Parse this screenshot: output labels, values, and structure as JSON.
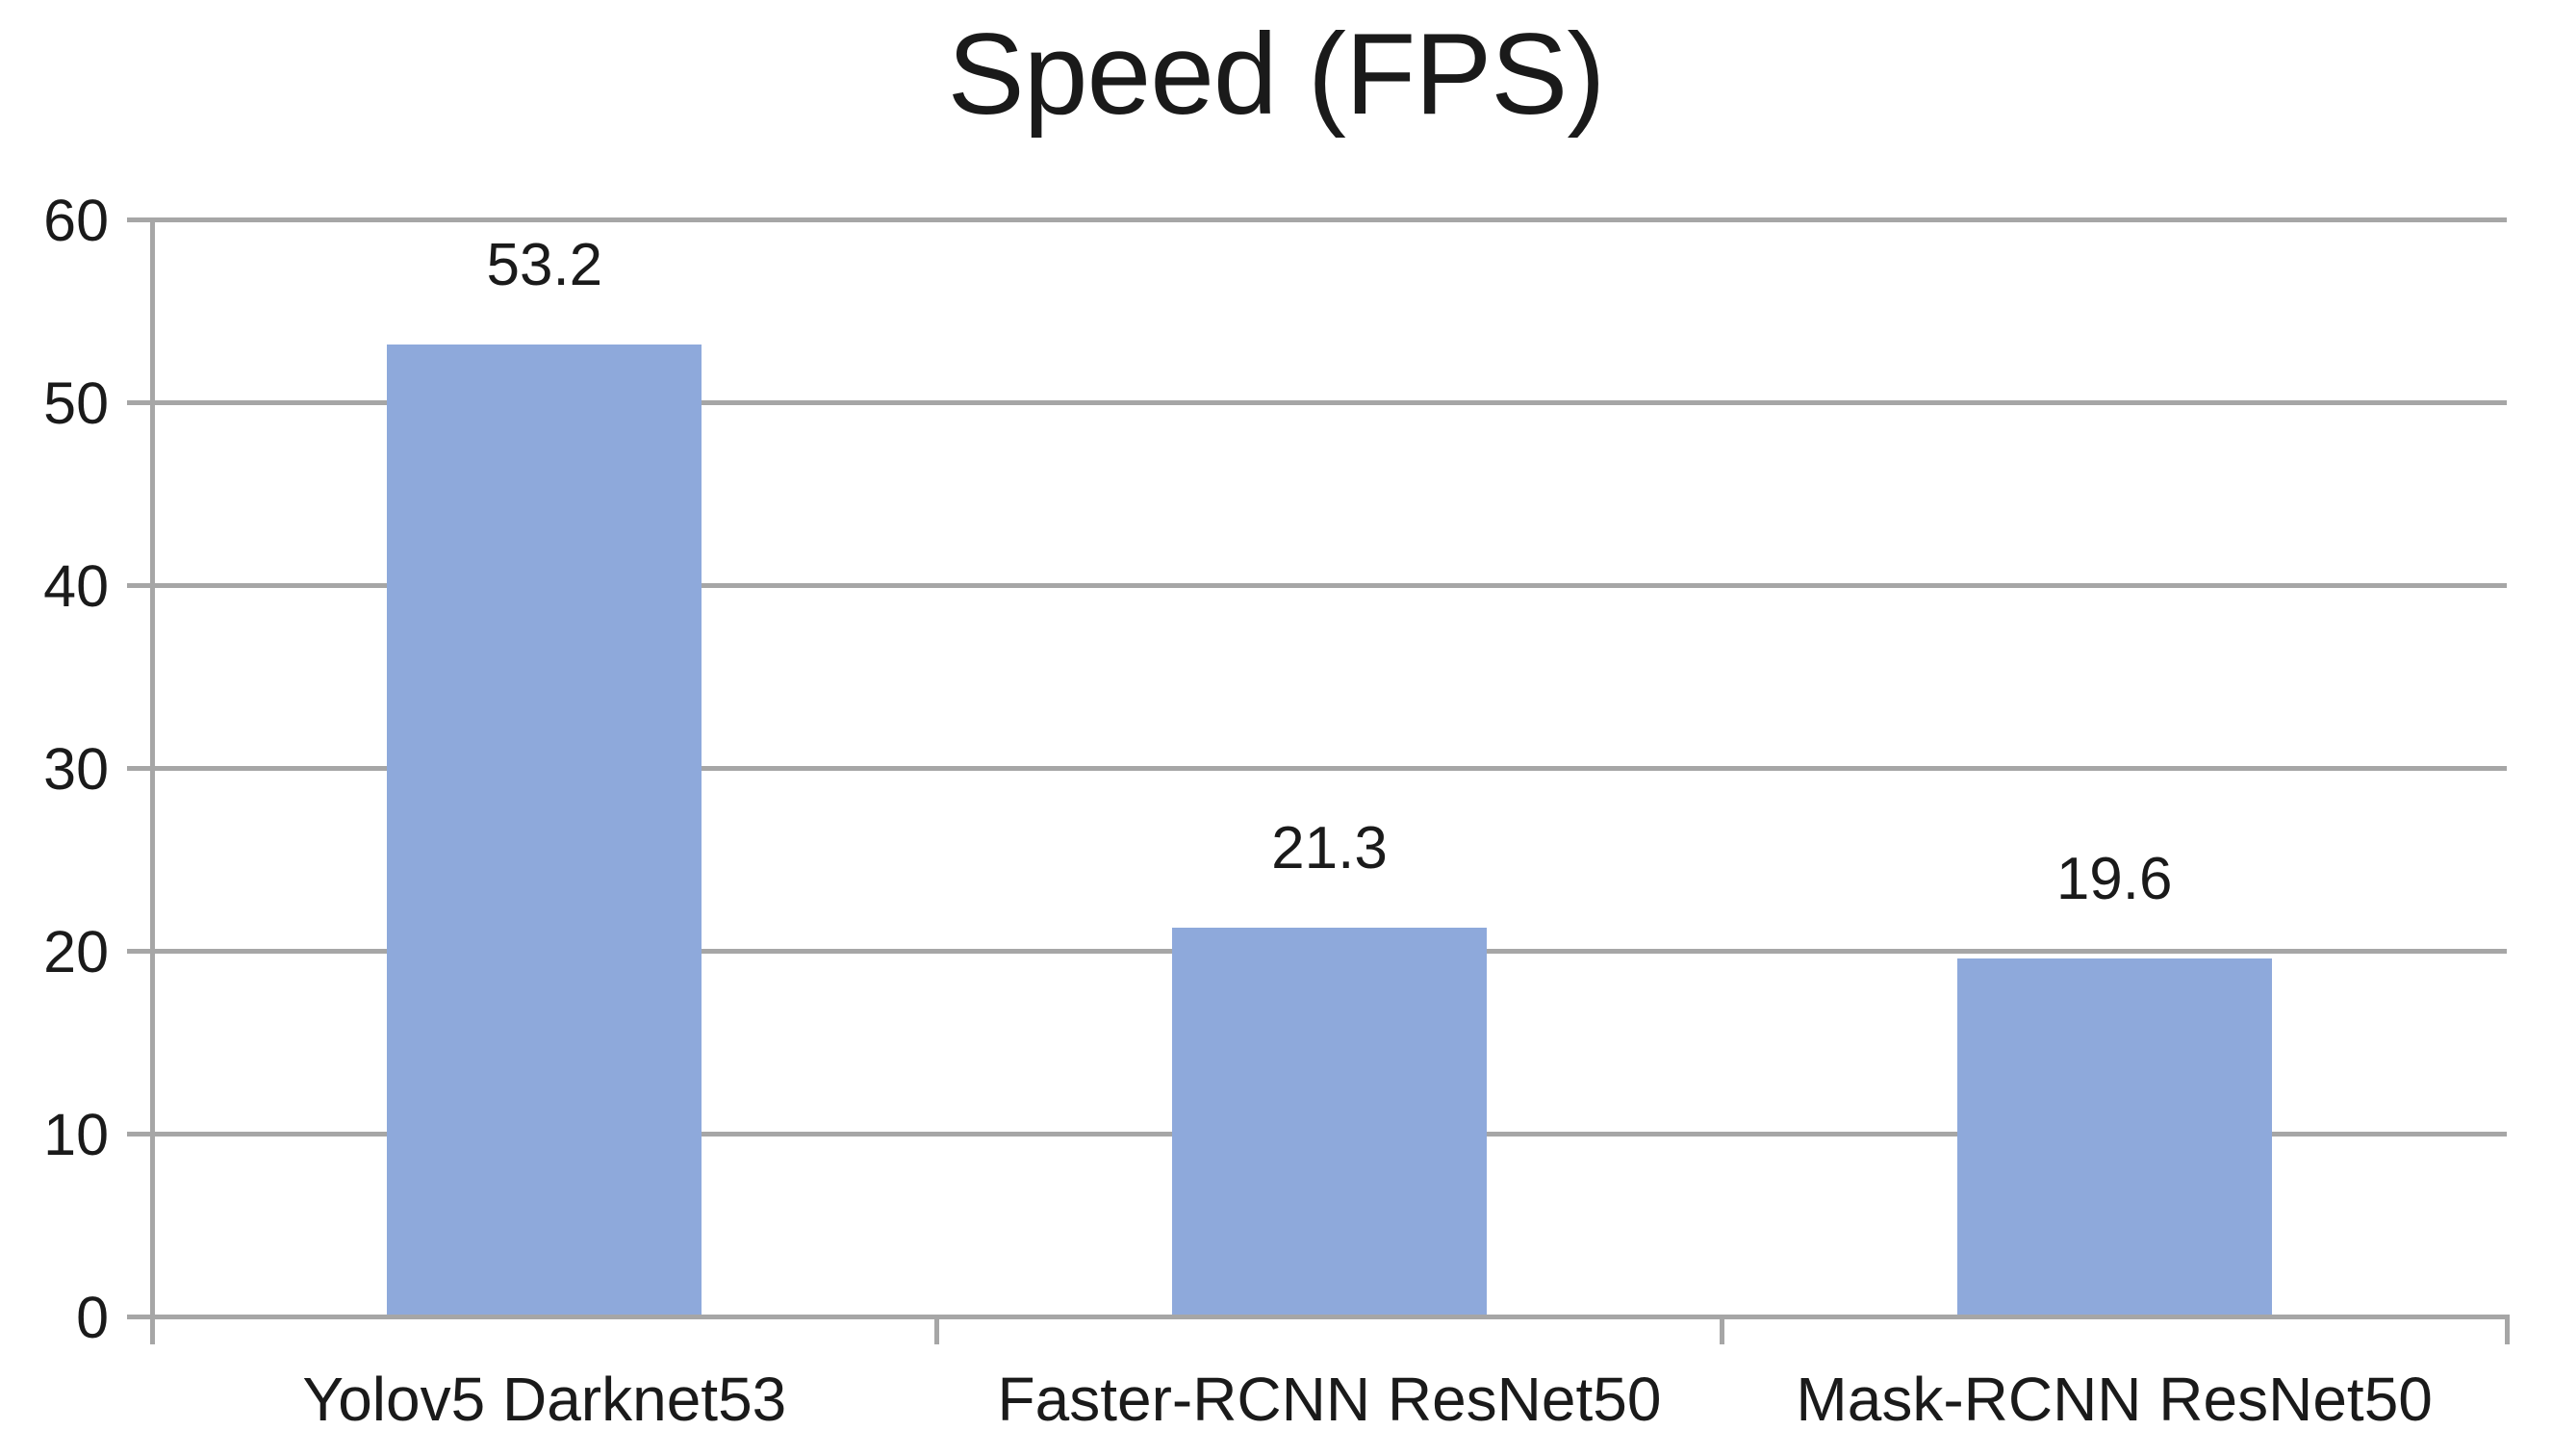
{
  "chart_data": {
    "type": "bar",
    "title": "Speed (FPS)",
    "categories": [
      "Yolov5 Darknet53",
      "Faster-RCNN ResNet50",
      "Mask-RCNN ResNet50"
    ],
    "values": [
      53.2,
      21.3,
      19.6
    ],
    "data_labels": [
      "53.2",
      "21.3",
      "19.6"
    ],
    "ylim": [
      0,
      60
    ],
    "yticks": [
      0,
      10,
      20,
      30,
      40,
      50,
      60
    ],
    "ytick_labels": [
      "0",
      "10",
      "20",
      "30",
      "40",
      "50",
      "60"
    ],
    "grid": "horizontal",
    "legend": "none",
    "bar_color": "#8ea9db",
    "grid_color": "#a6a6a6",
    "text_color": "#1a1a1a"
  }
}
